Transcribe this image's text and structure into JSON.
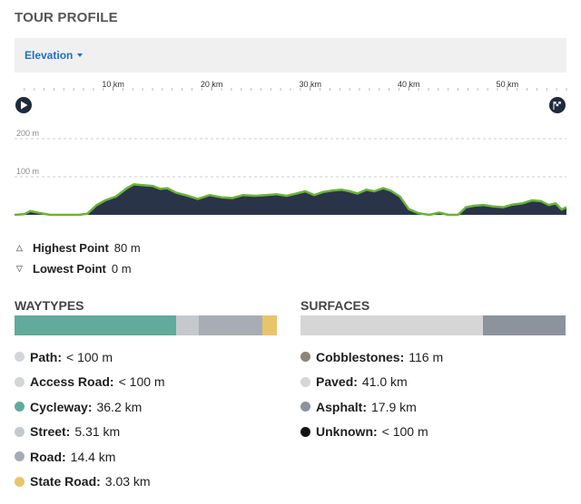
{
  "header": {
    "title": "TOUR PROFILE"
  },
  "toolbar": {
    "dropdown_label": "Elevation"
  },
  "profile": {
    "x_ticks": [
      {
        "label": "10 km"
      },
      {
        "label": "20 km"
      },
      {
        "label": "30 km"
      },
      {
        "label": "40 km"
      },
      {
        "label": "50 km"
      }
    ],
    "y_ticks": [
      {
        "label": "200 m"
      },
      {
        "label": "100 m"
      }
    ],
    "start_icon": "play-icon",
    "finish_icon": "finish-flag-icon",
    "colors": {
      "fill": "#2a3448",
      "line": "#6bb33a",
      "grid": "#cccccc"
    }
  },
  "chart_data": {
    "type": "area",
    "title": "",
    "xlabel": "",
    "ylabel": "",
    "x_unit": "km",
    "y_unit": "m",
    "xlim": [
      0,
      56
    ],
    "ylim": [
      0,
      230
    ],
    "x": [
      0,
      1,
      1.6,
      2.5,
      3.6,
      6.5,
      7.4,
      8.3,
      9.2,
      10.3,
      11.4,
      12.1,
      13.0,
      14.0,
      14.8,
      15.5,
      16.4,
      17.6,
      18.6,
      19.8,
      21.0,
      22.1,
      23.2,
      24.4,
      25.5,
      26.6,
      27.6,
      28.6,
      29.5,
      30.4,
      31.3,
      32.3,
      33.2,
      34.0,
      34.8,
      35.7,
      36.5,
      37.4,
      38.2,
      39.1,
      40.0,
      41.0,
      42.1,
      43.1,
      44.0,
      45.0,
      45.8,
      46.7,
      47.6,
      48.6,
      49.6,
      50.5,
      51.5,
      52.5,
      53.4,
      54.2,
      54.9,
      55.5,
      56.0
    ],
    "values": [
      0,
      2,
      10,
      5,
      0,
      0,
      3,
      25,
      38,
      48,
      70,
      80,
      78,
      76,
      68,
      70,
      58,
      50,
      42,
      52,
      46,
      44,
      52,
      50,
      52,
      54,
      50,
      56,
      62,
      52,
      60,
      64,
      66,
      62,
      56,
      66,
      62,
      70,
      63,
      48,
      15,
      4,
      0,
      6,
      0,
      0,
      20,
      24,
      26,
      22,
      20,
      27,
      30,
      38,
      36,
      26,
      30,
      14,
      20
    ],
    "x_ticks": [
      10,
      20,
      30,
      40,
      50
    ],
    "y_ticks": [
      100,
      200
    ],
    "grid": true
  },
  "stats": {
    "highest": {
      "label": "Highest Point",
      "value": "80 m"
    },
    "lowest": {
      "label": "Lowest Point",
      "value": "0 m"
    }
  },
  "waytypes": {
    "title": "WAYTYPES",
    "bar": [
      {
        "name": "Cycleway",
        "fraction": 0.61,
        "color": "#62aa9c"
      },
      {
        "name": "Street",
        "fraction": 0.085,
        "color": "#c5c9cd"
      },
      {
        "name": "Road",
        "fraction": 0.24,
        "color": "#a8adb5"
      },
      {
        "name": "State Road",
        "fraction": 0.055,
        "color": "#e9c46a"
      }
    ],
    "items": [
      {
        "name": "Path:",
        "value": "< 100 m",
        "color": "#d3d6d9"
      },
      {
        "name": "Access Road:",
        "value": "< 100 m",
        "color": "#d3d6d9"
      },
      {
        "name": "Cycleway:",
        "value": "36.2 km",
        "color": "#62aa9c"
      },
      {
        "name": "Street:",
        "value": "5.31 km",
        "color": "#c5c9cd"
      },
      {
        "name": "Road:",
        "value": "14.4 km",
        "color": "#a8adb5"
      },
      {
        "name": "State Road:",
        "value": "3.03 km",
        "color": "#e9c46a"
      }
    ]
  },
  "surfaces": {
    "title": "SURFACES",
    "bar": [
      {
        "name": "Paved",
        "fraction": 0.69,
        "color": "#d6d6d6"
      },
      {
        "name": "Asphalt",
        "fraction": 0.31,
        "color": "#8c939c"
      }
    ],
    "items": [
      {
        "name": "Cobblestones:",
        "value": "116 m",
        "color": "#8b8478"
      },
      {
        "name": "Paved:",
        "value": "41.0 km",
        "color": "#d6d6d6"
      },
      {
        "name": "Asphalt:",
        "value": "17.9 km",
        "color": "#8c939c"
      },
      {
        "name": "Unknown:",
        "value": "< 100 m",
        "color": "#111111"
      }
    ]
  }
}
